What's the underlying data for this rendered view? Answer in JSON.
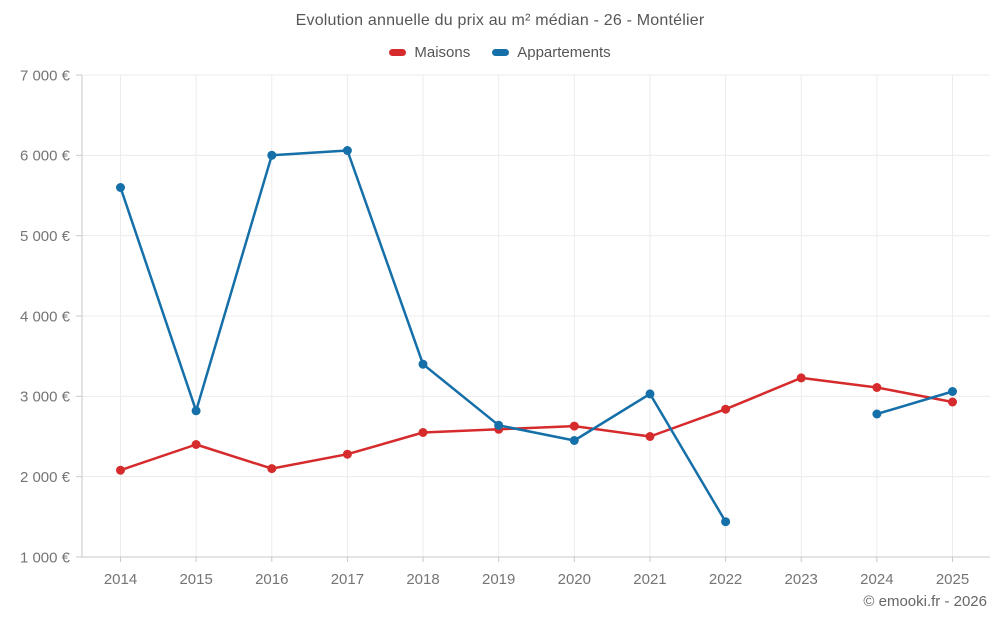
{
  "chart_data": {
    "type": "line",
    "title": "Evolution annuelle du prix au m² médian - 26 - Montélier",
    "x": [
      "2014",
      "2015",
      "2016",
      "2017",
      "2018",
      "2019",
      "2020",
      "2021",
      "2022",
      "2023",
      "2024",
      "2025"
    ],
    "series": [
      {
        "name": "Maisons",
        "color": "#d62b2d",
        "values": [
          2080,
          2400,
          2100,
          2280,
          2550,
          2590,
          2630,
          2500,
          2840,
          3230,
          3110,
          2930
        ]
      },
      {
        "name": "Appartements",
        "color": "#156fa8",
        "values": [
          5600,
          2820,
          6000,
          6060,
          3400,
          2640,
          2450,
          3030,
          1440,
          null,
          2780,
          3060
        ]
      }
    ],
    "ylim": [
      1000,
      7000
    ],
    "ytick_step": 1000,
    "y_tick_labels": [
      "1 000 €",
      "2 000 €",
      "3 000 €",
      "4 000 €",
      "5 000 €",
      "6 000 €",
      "7 000 €"
    ],
    "grid": true,
    "legend_position": "top"
  },
  "footer": {
    "credit": "© emooki.fr - 2026"
  }
}
